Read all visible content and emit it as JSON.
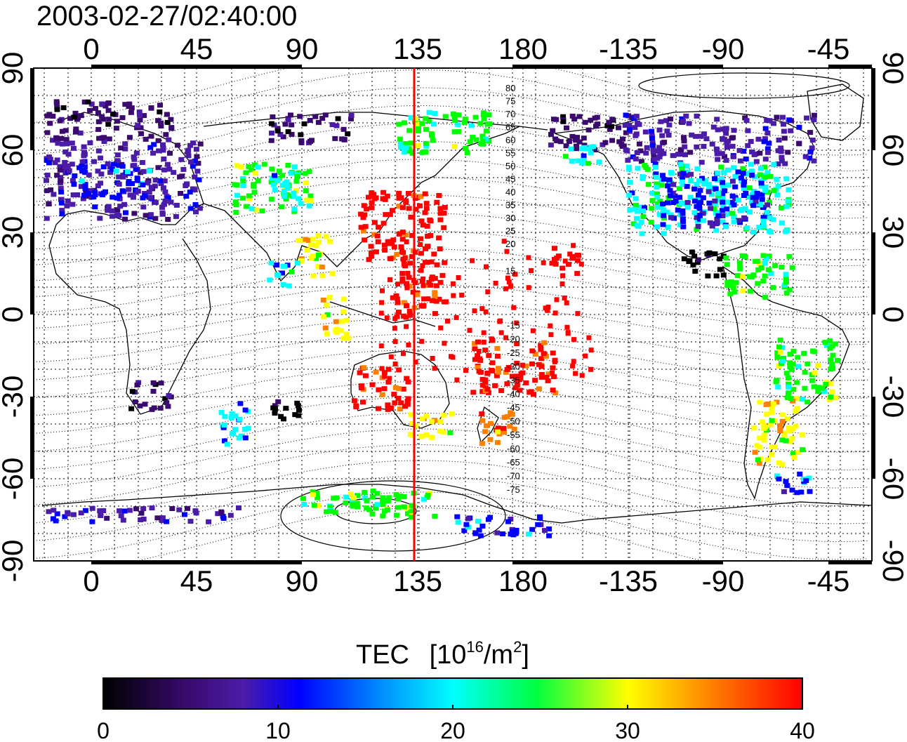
{
  "title": "2003-02-27/02:40:00",
  "map": {
    "lon_ticks": [
      "0",
      "45",
      "90",
      "135",
      "180",
      "-135",
      "-90",
      "-45"
    ],
    "lat_ticks": [
      "90",
      "60",
      "30",
      "0",
      "-30",
      "-60",
      "-90"
    ],
    "marker_longitude": 138,
    "marker_color": "#ff0000",
    "contour_labels_north": [
      "80",
      "75",
      "70",
      "65",
      "60",
      "55",
      "50",
      "45",
      "40",
      "35",
      "30",
      "25",
      "20",
      "15"
    ],
    "contour_labels_south": [
      "-15",
      "-20",
      "-25",
      "-30",
      "-35",
      "-40",
      "-45",
      "-50",
      "-55",
      "-60",
      "-65",
      "-70",
      "-75"
    ]
  },
  "colorbar": {
    "title": "TEC",
    "unit_base": "[10",
    "unit_exp": "16",
    "unit_mid": "/m",
    "unit_exp2": "2",
    "unit_close": "]",
    "ticks": [
      "0",
      "10",
      "20",
      "30",
      "40"
    ],
    "min": 0,
    "max": 40,
    "colormap": [
      "#000000",
      "#3a0a6e",
      "#4b1ca8",
      "#0000ff",
      "#00ffff",
      "#00ff00",
      "#ffff00",
      "#ff8000",
      "#ff0000"
    ]
  }
}
